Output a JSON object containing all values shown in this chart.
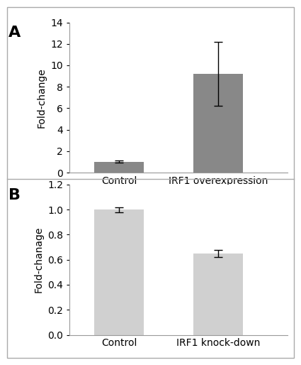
{
  "panel_A": {
    "categories": [
      "Control",
      "IRF1 overexpression"
    ],
    "values": [
      1.0,
      9.2
    ],
    "errors": [
      0.1,
      3.0
    ],
    "bar_color": "#888888",
    "ylabel": "Fold-change",
    "ylim": [
      0,
      14
    ],
    "yticks": [
      0,
      2,
      4,
      6,
      8,
      10,
      12,
      14
    ],
    "label": "A"
  },
  "panel_B": {
    "categories": [
      "Control",
      "IRF1 knock-down"
    ],
    "values": [
      1.0,
      0.65
    ],
    "errors": [
      0.02,
      0.03
    ],
    "bar_color": "#d0d0d0",
    "ylabel": "Fold-chanage",
    "ylim": [
      0,
      1.2
    ],
    "yticks": [
      0,
      0.2,
      0.4,
      0.6,
      0.8,
      1.0,
      1.2
    ],
    "label": "B"
  },
  "background_color": "#ffffff",
  "bar_width": 0.5,
  "font_size": 10,
  "label_font_size": 16,
  "outer_border_color": "#aaaaaa",
  "divider_color": "#aaaaaa"
}
